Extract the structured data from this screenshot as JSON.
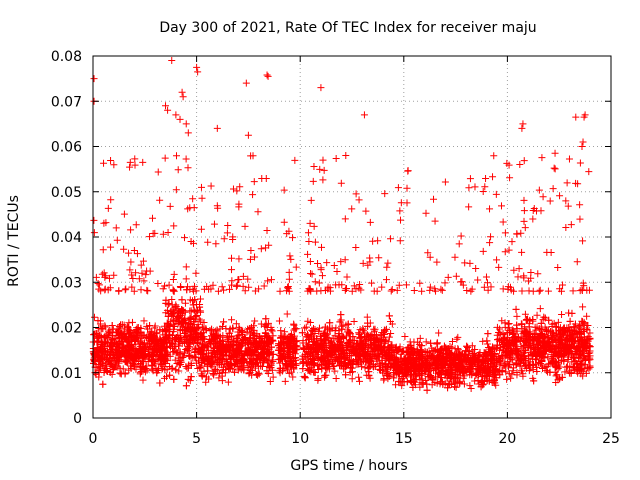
{
  "chart_data": {
    "type": "scatter",
    "title": "Day 300 of 2021, Rate Of TEC Index for receiver maju",
    "xlabel": "GPS time / hours",
    "ylabel": "ROTI / TECUs",
    "xlim": [
      0,
      25
    ],
    "ylim": [
      0,
      0.08
    ],
    "x_ticks": [
      0,
      5,
      10,
      15,
      20,
      25
    ],
    "y_ticks": [
      0,
      0.01,
      0.02,
      0.03,
      0.04,
      0.05,
      0.06,
      0.07,
      0.08
    ],
    "x_tick_labels": [
      "0",
      "5",
      "10",
      "15",
      "20",
      "25"
    ],
    "y_tick_labels": [
      "0",
      "0.01",
      "0.02",
      "0.03",
      "0.04",
      "0.05",
      "0.06",
      "0.07",
      "0.08"
    ],
    "grid": true,
    "marker": "+",
    "color": "#ff0000",
    "series": [
      {
        "name": "ROTI",
        "description_hint": "dense scatter of ROTI values between 0 and 24 hours, mostly 0.005-0.03 with spikes",
        "outliers": [
          {
            "x": 0.05,
            "y": 0.075
          },
          {
            "x": 0.05,
            "y": 0.07
          },
          {
            "x": 3.8,
            "y": 0.079
          },
          {
            "x": 4.3,
            "y": 0.072
          },
          {
            "x": 4.35,
            "y": 0.071
          },
          {
            "x": 3.5,
            "y": 0.069
          },
          {
            "x": 5.0,
            "y": 0.0775
          },
          {
            "x": 5.05,
            "y": 0.0765
          },
          {
            "x": 7.4,
            "y": 0.074
          },
          {
            "x": 8.4,
            "y": 0.0758
          },
          {
            "x": 8.45,
            "y": 0.0755
          },
          {
            "x": 11.0,
            "y": 0.073
          },
          {
            "x": 13.1,
            "y": 0.067
          },
          {
            "x": 23.3,
            "y": 0.0665
          },
          {
            "x": 23.7,
            "y": 0.0665
          },
          {
            "x": 23.75,
            "y": 0.067
          },
          {
            "x": 7.5,
            "y": 0.0625
          },
          {
            "x": 6.0,
            "y": 0.064
          },
          {
            "x": 20.7,
            "y": 0.064
          },
          {
            "x": 20.75,
            "y": 0.065
          },
          {
            "x": 22.3,
            "y": 0.0585
          },
          {
            "x": 23.6,
            "y": 0.06
          },
          {
            "x": 23.65,
            "y": 0.061
          },
          {
            "x": 12.2,
            "y": 0.058
          },
          {
            "x": 11.1,
            "y": 0.057
          },
          {
            "x": 1.8,
            "y": 0.0565
          },
          {
            "x": 2.4,
            "y": 0.0565
          },
          {
            "x": 4.0,
            "y": 0.067
          },
          {
            "x": 4.2,
            "y": 0.066
          },
          {
            "x": 4.5,
            "y": 0.065
          },
          {
            "x": 3.6,
            "y": 0.068
          },
          {
            "x": 4.6,
            "y": 0.063
          }
        ]
      }
    ]
  }
}
